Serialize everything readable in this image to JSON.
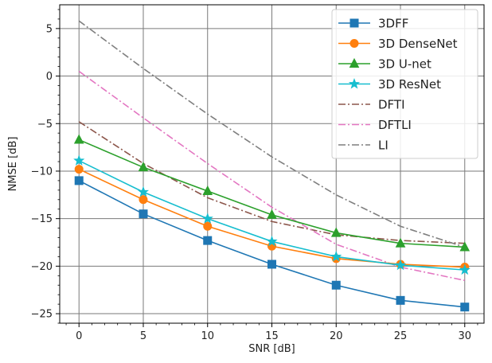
{
  "chart_data": {
    "type": "line",
    "title": "",
    "xlabel": "SNR [dB]",
    "ylabel": "NMSE [dB]",
    "x": [
      0,
      5,
      10,
      15,
      20,
      25,
      30
    ],
    "xlim": [
      -1.5,
      31.5
    ],
    "ylim": [
      -26,
      7.5
    ],
    "xticks": [
      0,
      5,
      10,
      15,
      20,
      25,
      30
    ],
    "yticks": [
      -25,
      -20,
      -15,
      -10,
      -5,
      0,
      5
    ],
    "xtick_labels": [
      "0",
      "5",
      "10",
      "15",
      "20",
      "25",
      "30"
    ],
    "ytick_labels": [
      "−25",
      "−20",
      "−15",
      "−10",
      "−5",
      "0",
      "5"
    ],
    "grid": true,
    "legend_position": "top-right",
    "series": [
      {
        "name": "3DFF",
        "color": "#1f77b4",
        "marker": "square",
        "line_style": "solid",
        "values": [
          -11.0,
          -14.5,
          -17.3,
          -19.8,
          -22.0,
          -23.6,
          -24.3
        ]
      },
      {
        "name": "3D DenseNet",
        "color": "#ff7f0e",
        "marker": "circle",
        "line_style": "solid",
        "values": [
          -9.8,
          -13.0,
          -15.8,
          -17.9,
          -19.2,
          -19.8,
          -20.1
        ]
      },
      {
        "name": "3D U-net",
        "color": "#2ca02c",
        "marker": "triangle",
        "line_style": "solid",
        "values": [
          -6.7,
          -9.6,
          -12.1,
          -14.6,
          -16.5,
          -17.6,
          -18.0
        ]
      },
      {
        "name": "3D ResNet",
        "color": "#17becf",
        "marker": "star",
        "line_style": "solid",
        "values": [
          -8.9,
          -12.2,
          -15.0,
          -17.4,
          -19.0,
          -19.9,
          -20.4
        ]
      },
      {
        "name": "DFTI",
        "color": "#8c564b",
        "marker": "none",
        "line_style": "dash-dot",
        "values": [
          -4.8,
          -9.2,
          -12.8,
          -15.3,
          -16.7,
          -17.3,
          -17.6
        ]
      },
      {
        "name": "DFTLI",
        "color": "#e377c2",
        "marker": "none",
        "line_style": "dash-dot",
        "values": [
          0.5,
          -4.4,
          -9.2,
          -13.8,
          -17.7,
          -20.1,
          -21.5
        ]
      },
      {
        "name": "LI",
        "color": "#7f7f7f",
        "marker": "none",
        "line_style": "dash-dot",
        "values": [
          5.8,
          0.8,
          -4.0,
          -8.5,
          -12.5,
          -15.8,
          -18.0
        ]
      }
    ]
  }
}
